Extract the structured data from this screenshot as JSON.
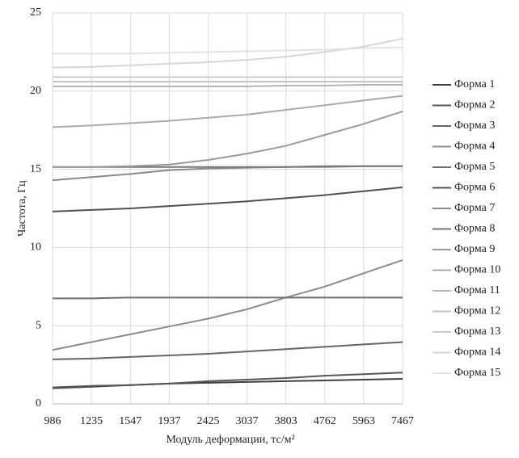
{
  "chart_data": {
    "type": "line",
    "x_label": "Модуль деформации, тс/м²",
    "y_label": "Частота, Гц",
    "categories": [
      "986",
      "1235",
      "1547",
      "1937",
      "2425",
      "3037",
      "3803",
      "4762",
      "5963",
      "7467"
    ],
    "ylim": [
      0,
      25
    ],
    "yticks": [
      0,
      5,
      10,
      15,
      20,
      25
    ],
    "grid": true,
    "series": [
      {
        "name": "Форма 1",
        "color": "#404040",
        "values": [
          1.0,
          1.1,
          1.2,
          1.3,
          1.35,
          1.4,
          1.45,
          1.5,
          1.55,
          1.6
        ]
      },
      {
        "name": "Форма 2",
        "color": "#555555",
        "values": [
          1.05,
          1.15,
          1.2,
          1.3,
          1.45,
          1.55,
          1.65,
          1.8,
          1.9,
          2.0
        ]
      },
      {
        "name": "Форма 3",
        "color": "#666666",
        "values": [
          2.85,
          2.9,
          3.0,
          3.1,
          3.2,
          3.35,
          3.5,
          3.65,
          3.8,
          3.95
        ]
      },
      {
        "name": "Форма 4",
        "color": "#8c8c8c",
        "values": [
          3.45,
          3.95,
          4.45,
          4.95,
          5.45,
          6.05,
          6.8,
          7.5,
          8.35,
          9.2
        ]
      },
      {
        "name": "Форма 5",
        "color": "#707070",
        "values": [
          6.75,
          6.75,
          6.8,
          6.8,
          6.8,
          6.8,
          6.8,
          6.8,
          6.8,
          6.8
        ]
      },
      {
        "name": "Форма 6",
        "color": "#505050",
        "values": [
          12.3,
          12.4,
          12.5,
          12.65,
          12.8,
          12.95,
          13.15,
          13.35,
          13.6,
          13.85
        ]
      },
      {
        "name": "Форма 7",
        "color": "#8a8a8a",
        "values": [
          14.3,
          14.5,
          14.7,
          14.95,
          15.05,
          15.1,
          15.15,
          15.15,
          15.2,
          15.2
        ]
      },
      {
        "name": "Форма 8",
        "color": "#777777",
        "values": [
          15.15,
          15.15,
          15.15,
          15.15,
          15.15,
          15.15,
          15.15,
          15.2,
          15.2,
          15.2
        ]
      },
      {
        "name": "Форма 9",
        "color": "#9a9a9a",
        "values": [
          15.15,
          15.15,
          15.2,
          15.3,
          15.6,
          16.0,
          16.5,
          17.2,
          17.9,
          18.7
        ]
      },
      {
        "name": "Форма 10",
        "color": "#aaaaaa",
        "values": [
          17.7,
          17.8,
          17.95,
          18.1,
          18.3,
          18.5,
          18.8,
          19.1,
          19.4,
          19.7
        ]
      },
      {
        "name": "Форма 11",
        "color": "#b5b5b5",
        "values": [
          20.3,
          20.3,
          20.3,
          20.3,
          20.3,
          20.3,
          20.35,
          20.35,
          20.4,
          20.4
        ]
      },
      {
        "name": "Форма 12",
        "color": "#c0c0c0",
        "values": [
          20.6,
          20.6,
          20.6,
          20.6,
          20.6,
          20.6,
          20.6,
          20.6,
          20.6,
          20.6
        ]
      },
      {
        "name": "Форма 13",
        "color": "#cbcbcb",
        "values": [
          20.9,
          20.9,
          20.9,
          20.9,
          20.9,
          20.9,
          20.9,
          20.9,
          20.9,
          20.9
        ]
      },
      {
        "name": "Форма 14",
        "color": "#d6d6d6",
        "values": [
          21.5,
          21.55,
          21.65,
          21.75,
          21.85,
          22.0,
          22.2,
          22.5,
          22.85,
          23.35
        ]
      },
      {
        "name": "Форма 15",
        "color": "#e2e2e2",
        "values": [
          22.4,
          22.4,
          22.4,
          22.45,
          22.5,
          22.55,
          22.6,
          22.65,
          22.75,
          22.8
        ]
      }
    ]
  }
}
